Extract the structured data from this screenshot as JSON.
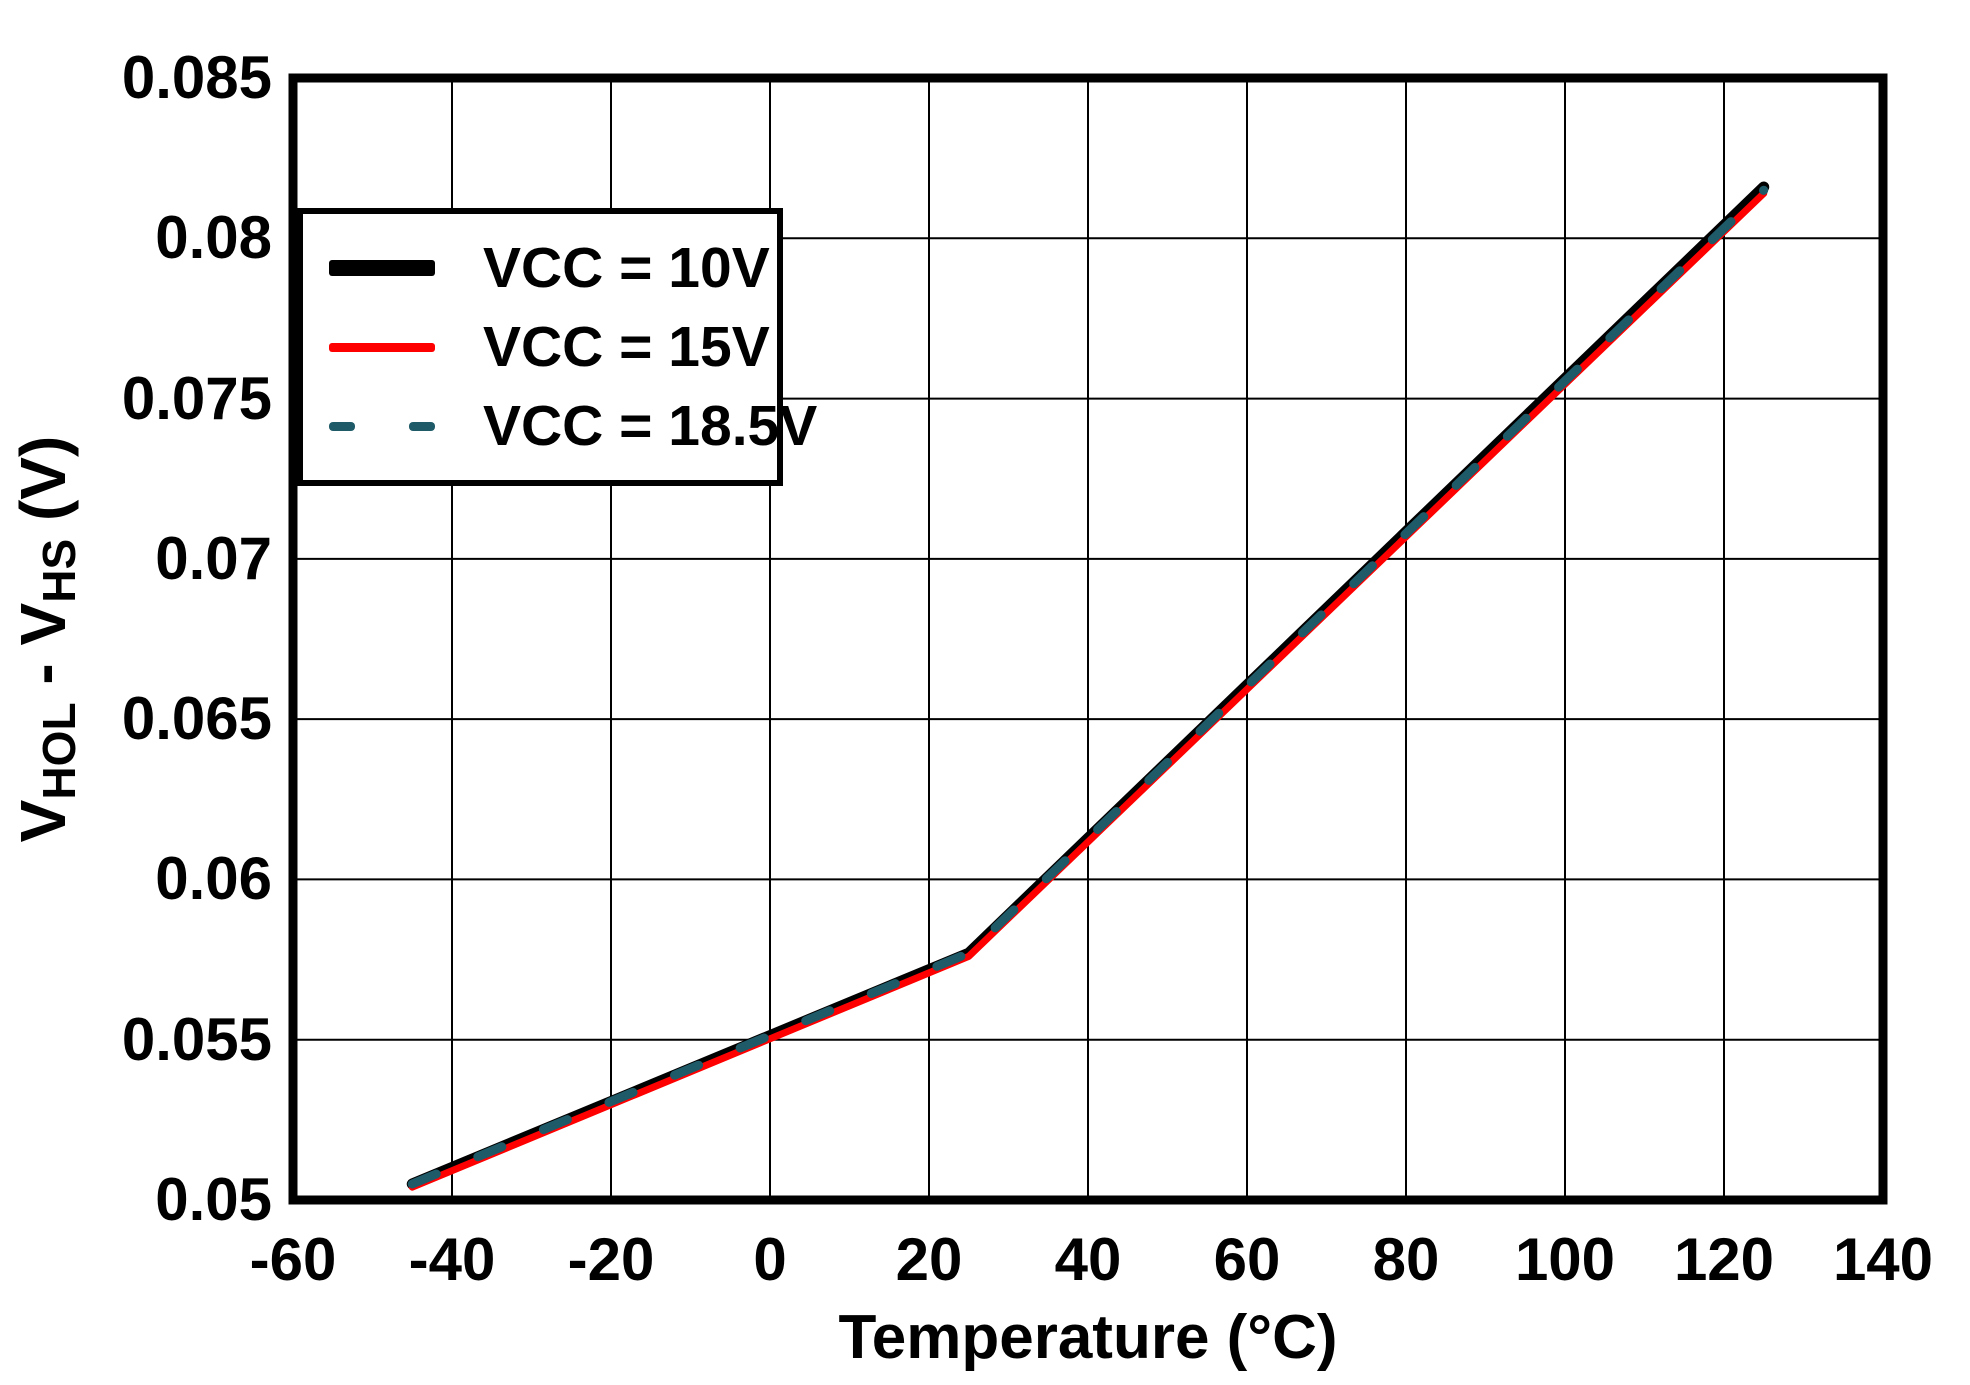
{
  "chart_data": {
    "type": "line",
    "title": "",
    "xlabel": "Temperature (°C)",
    "ylabel": "V_HOL - V_HS (V)",
    "ylabel_parts": [
      {
        "text": "V"
      },
      {
        "text": "HOL",
        "sub": true
      },
      {
        "text": " - V"
      },
      {
        "text": "HS",
        "sub": true
      },
      {
        "text": " (V)"
      }
    ],
    "xlim": [
      -60,
      140
    ],
    "ylim": [
      0.05,
      0.085
    ],
    "x_ticks": [
      -60,
      -40,
      -20,
      0,
      20,
      40,
      60,
      80,
      100,
      120,
      140
    ],
    "x_tick_labels": [
      "-60",
      "-40",
      "-20",
      "0",
      "20",
      "40",
      "60",
      "80",
      "100",
      "120",
      "140"
    ],
    "y_ticks": [
      0.05,
      0.055,
      0.06,
      0.065,
      0.07,
      0.075,
      0.08,
      0.085
    ],
    "y_tick_labels": [
      "0.05",
      "0.055",
      "0.06",
      "0.065",
      "0.07",
      "0.075",
      "0.08",
      "0.085"
    ],
    "grid": true,
    "legend_position": "top-left",
    "series": [
      {
        "name": "VCC = 10V",
        "color": "#000000",
        "style": "solid",
        "points": [
          [
            -45,
            0.0505
          ],
          [
            25,
            0.0577
          ],
          [
            125,
            0.0816
          ]
        ]
      },
      {
        "name": "VCC = 15V",
        "color": "#ff0000",
        "style": "solid",
        "points": [
          [
            -45,
            0.0504
          ],
          [
            25,
            0.0576
          ],
          [
            125,
            0.0814
          ]
        ]
      },
      {
        "name": "VCC = 18.5V",
        "color": "#1e5a68",
        "style": "dashed",
        "points": [
          [
            -45,
            0.0505
          ],
          [
            25,
            0.0577
          ],
          [
            125,
            0.0815
          ]
        ]
      }
    ]
  }
}
